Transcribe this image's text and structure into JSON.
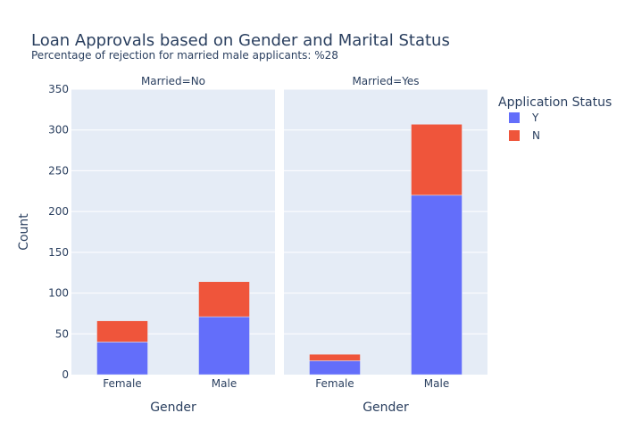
{
  "chart_data": {
    "type": "bar",
    "barmode": "stack",
    "title": "Loan Approvals based on Gender and Marital Status",
    "subtitle": "Percentage of rejection for married male applicants: %28",
    "ylabel": "Count",
    "xlabel": "Gender",
    "ylim": [
      0,
      350
    ],
    "yticks": [
      0,
      50,
      100,
      150,
      200,
      250,
      300,
      350
    ],
    "grid": true,
    "legend": {
      "title": "Application Status",
      "placement": "top-right",
      "entries": [
        {
          "name": "Y",
          "color": "#636efa"
        },
        {
          "name": "N",
          "color": "#ef553b"
        }
      ]
    },
    "facets": [
      {
        "title": "Married=No",
        "categories": [
          "Female",
          "Male"
        ],
        "series": [
          {
            "name": "Y",
            "color": "#636efa",
            "values": [
              40,
              71
            ]
          },
          {
            "name": "N",
            "color": "#ef553b",
            "values": [
              26,
              43
            ]
          }
        ]
      },
      {
        "title": "Married=Yes",
        "categories": [
          "Female",
          "Male"
        ],
        "series": [
          {
            "name": "Y",
            "color": "#636efa",
            "values": [
              17,
              220
            ]
          },
          {
            "name": "N",
            "color": "#ef553b",
            "values": [
              8,
              87
            ]
          }
        ]
      }
    ]
  }
}
